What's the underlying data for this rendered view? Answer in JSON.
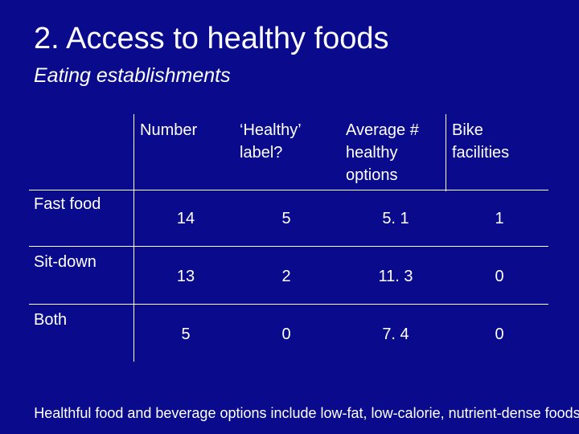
{
  "slide": {
    "title": "2. Access to healthy foods",
    "subtitle": "Eating establishments",
    "footnote": "Healthful food and beverage options include low-fat, low-calorie, nutrient-dense foods"
  },
  "table": {
    "headers": [
      "",
      "Number",
      "‘Healthy’ label?",
      "Average # healthy options",
      "Bike facilities"
    ],
    "header_lines": {
      "number": "Number",
      "healthy_label_1": "‘Healthy’",
      "healthy_label_2": "label?",
      "average_1": "Average #",
      "average_2": "healthy",
      "average_3": "options",
      "bike_1": "Bike",
      "bike_2": "facilities"
    },
    "rows": [
      {
        "label": "Fast food",
        "number": "14",
        "healthy_label": "5",
        "average_healthy_options": "5. 1",
        "bike_facilities": "1"
      },
      {
        "label": "Sit-down",
        "number": "13",
        "healthy_label": "2",
        "average_healthy_options": "11. 3",
        "bike_facilities": "0"
      },
      {
        "label": "Both",
        "number": "5",
        "healthy_label": "0",
        "average_healthy_options": "7. 4",
        "bike_facilities": "0"
      }
    ]
  }
}
